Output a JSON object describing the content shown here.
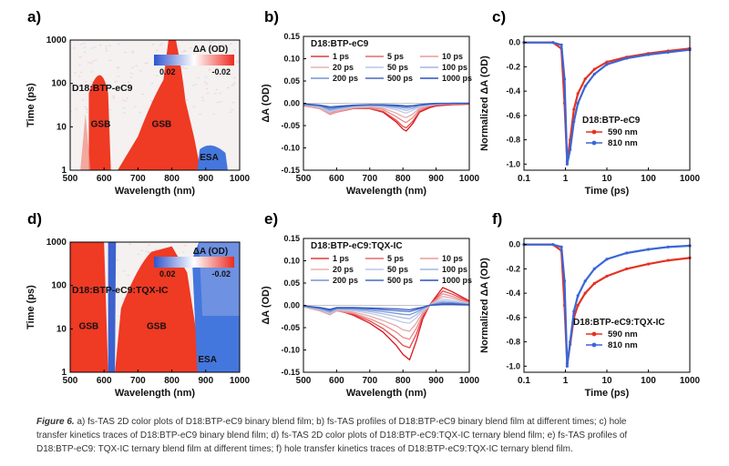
{
  "colors": {
    "red": "#e53222",
    "blue": "#3a66d6",
    "bg_red": "#ef3a24",
    "bg_blue": "#4477dd",
    "legend_red": "#e8463a",
    "legend_blue": "#3d6fe0",
    "text": "#111111"
  },
  "chart_data": [
    {
      "panel": "a)",
      "type": "heatmap",
      "sample": "D18:BTP-eC9",
      "xlabel": "Wavelength (nm)",
      "ylabel": "Time (ps)",
      "x_range": [
        500,
        1000
      ],
      "x_ticks": [
        "500",
        "600",
        "700",
        "800",
        "900",
        "1000"
      ],
      "y_scale": "log",
      "y_range": [
        1,
        1000
      ],
      "y_ticks": [
        "1",
        "10",
        "100",
        "1000"
      ],
      "colorbar": {
        "title": "ΔA (OD)",
        "min_label": "0.02",
        "max_label": "-0.02"
      },
      "annotations": [
        {
          "text": "GSB",
          "wavelength": 590,
          "time": 10
        },
        {
          "text": "GSB",
          "wavelength": 770,
          "time": 10
        },
        {
          "text": "ESA",
          "wavelength": 910,
          "time": 1.7
        }
      ]
    },
    {
      "panel": "b)",
      "type": "line",
      "sample": "D18:BTP-eC9",
      "xlabel": "Wavelength (nm)",
      "ylabel": "ΔA (OD)",
      "x_range": [
        500,
        1000
      ],
      "y_range": [
        -0.15,
        0.15
      ],
      "x_ticks": [
        "500",
        "600",
        "700",
        "800",
        "900",
        "1000"
      ],
      "y_ticks": [
        "0.15",
        "0.10",
        "0.05",
        "0.00",
        "-0.05",
        "-0.10",
        "-0.15"
      ],
      "legend": [
        "1 ps",
        "5 ps",
        "10 ps",
        "20 ps",
        "50 ps",
        "100 ps",
        "200 ps",
        "500 ps",
        "1000 ps"
      ],
      "x": [
        500,
        550,
        580,
        600,
        650,
        700,
        740,
        780,
        800,
        810,
        830,
        850,
        880,
        900,
        950,
        1000
      ],
      "series": [
        {
          "name": "1 ps",
          "values": [
            -0.005,
            -0.01,
            -0.02,
            -0.018,
            -0.01,
            -0.012,
            -0.02,
            -0.042,
            -0.058,
            -0.062,
            -0.045,
            -0.02,
            -0.01,
            -0.006,
            -0.003,
            -0.002
          ]
        },
        {
          "name": "5 ps",
          "values": [
            -0.005,
            -0.012,
            -0.024,
            -0.02,
            -0.012,
            -0.012,
            -0.018,
            -0.038,
            -0.052,
            -0.055,
            -0.04,
            -0.018,
            -0.008,
            -0.004,
            -0.002,
            -0.001
          ]
        },
        {
          "name": "10 ps",
          "values": [
            -0.004,
            -0.012,
            -0.025,
            -0.02,
            -0.011,
            -0.01,
            -0.014,
            -0.03,
            -0.04,
            -0.043,
            -0.032,
            -0.014,
            -0.006,
            -0.003,
            -0.001,
            0.0
          ]
        },
        {
          "name": "20 ps",
          "values": [
            -0.004,
            -0.011,
            -0.023,
            -0.018,
            -0.01,
            -0.008,
            -0.011,
            -0.022,
            -0.03,
            -0.032,
            -0.024,
            -0.011,
            -0.005,
            -0.002,
            -0.001,
            0.0
          ]
        },
        {
          "name": "50 ps",
          "values": [
            -0.003,
            -0.009,
            -0.02,
            -0.015,
            -0.008,
            -0.006,
            -0.008,
            -0.015,
            -0.02,
            -0.022,
            -0.016,
            -0.008,
            -0.004,
            -0.002,
            0.0,
            0.0
          ]
        },
        {
          "name": "100 ps",
          "values": [
            -0.003,
            -0.008,
            -0.017,
            -0.013,
            -0.007,
            -0.005,
            -0.006,
            -0.011,
            -0.014,
            -0.016,
            -0.012,
            -0.006,
            -0.003,
            -0.001,
            0.0,
            0.0
          ]
        },
        {
          "name": "200 ps",
          "values": [
            -0.002,
            -0.006,
            -0.014,
            -0.011,
            -0.006,
            -0.004,
            -0.005,
            -0.008,
            -0.01,
            -0.011,
            -0.009,
            -0.005,
            -0.002,
            -0.001,
            0.0,
            0.0
          ]
        },
        {
          "name": "500 ps",
          "values": [
            -0.002,
            -0.005,
            -0.011,
            -0.009,
            -0.005,
            -0.003,
            -0.004,
            -0.006,
            -0.007,
            -0.008,
            -0.006,
            -0.004,
            -0.002,
            -0.001,
            0.0,
            0.0
          ]
        },
        {
          "name": "1000 ps",
          "values": [
            -0.001,
            -0.004,
            -0.008,
            -0.007,
            -0.004,
            -0.003,
            -0.003,
            -0.004,
            -0.005,
            -0.006,
            -0.005,
            -0.003,
            -0.001,
            0.0,
            0.0,
            0.0
          ]
        }
      ]
    },
    {
      "panel": "c)",
      "type": "line",
      "sample": "D18:BTP-eC9",
      "xlabel": "Time (ps)",
      "ylabel": "Normalized ΔA (OD)",
      "x_scale": "log",
      "x_range": [
        0.1,
        1000
      ],
      "y_range": [
        -1.05,
        0.05
      ],
      "x_ticks": [
        "0.1",
        "1",
        "10",
        "100",
        "1000"
      ],
      "y_ticks": [
        "0.0",
        "-0.2",
        "-0.4",
        "-0.6",
        "-0.8",
        "-1.0"
      ],
      "series": [
        {
          "name": "590 nm",
          "x": [
            0.1,
            0.5,
            0.8,
            0.95,
            1.1,
            1.3,
            1.6,
            2,
            3,
            5,
            10,
            30,
            100,
            300,
            1000
          ],
          "values": [
            0.0,
            0.0,
            -0.05,
            -0.5,
            -0.98,
            -0.8,
            -0.55,
            -0.42,
            -0.3,
            -0.22,
            -0.16,
            -0.12,
            -0.09,
            -0.07,
            -0.05
          ]
        },
        {
          "name": "810 nm",
          "x": [
            0.1,
            0.5,
            0.8,
            0.95,
            1.1,
            1.3,
            1.6,
            2,
            3,
            5,
            10,
            30,
            100,
            300,
            1000
          ],
          "values": [
            0.0,
            0.0,
            -0.02,
            -0.3,
            -1.0,
            -0.88,
            -0.65,
            -0.5,
            -0.36,
            -0.26,
            -0.18,
            -0.13,
            -0.1,
            -0.08,
            -0.06
          ]
        }
      ]
    },
    {
      "panel": "d)",
      "type": "heatmap",
      "sample": "D18:BTP-eC9:TQX-IC",
      "xlabel": "Wavelength (nm)",
      "ylabel": "Time (ps)",
      "x_range": [
        500,
        1000
      ],
      "x_ticks": [
        "500",
        "600",
        "700",
        "800",
        "900",
        "1000"
      ],
      "y_scale": "log",
      "y_range": [
        1,
        1000
      ],
      "y_ticks": [
        "1",
        "10",
        "100",
        "1000"
      ],
      "colorbar": {
        "title": "ΔA (OD)",
        "min_label": "0.02",
        "max_label": "-0.02"
      },
      "annotations": [
        {
          "text": "GSB",
          "wavelength": 555,
          "time": 10
        },
        {
          "text": "GSB",
          "wavelength": 755,
          "time": 10
        },
        {
          "text": "ESA",
          "wavelength": 905,
          "time": 1.7
        }
      ]
    },
    {
      "panel": "e)",
      "type": "line",
      "sample": "D18:BTP-eC9:TQX-IC",
      "xlabel": "Wavelength (nm)",
      "ylabel": "ΔA (OD)",
      "x_range": [
        500,
        1000
      ],
      "y_range": [
        -0.15,
        0.15
      ],
      "x_ticks": [
        "500",
        "600",
        "700",
        "800",
        "900",
        "1000"
      ],
      "y_ticks": [
        "0.15",
        "0.10",
        "0.05",
        "0.00",
        "-0.05",
        "-0.10",
        "-0.15"
      ],
      "legend": [
        "1 ps",
        "5 ps",
        "10 ps",
        "20 ps",
        "50 ps",
        "100 ps",
        "200 ps",
        "500 ps",
        "1000 ps"
      ],
      "x": [
        500,
        550,
        580,
        600,
        650,
        700,
        740,
        780,
        800,
        820,
        840,
        860,
        880,
        900,
        920,
        950,
        1000
      ],
      "series": [
        {
          "name": "1 ps",
          "values": [
            -0.002,
            -0.01,
            -0.018,
            -0.01,
            -0.022,
            -0.04,
            -0.06,
            -0.09,
            -0.11,
            -0.122,
            -0.08,
            -0.03,
            0.0,
            0.02,
            0.04,
            0.03,
            0.01
          ]
        },
        {
          "name": "5 ps",
          "values": [
            -0.003,
            -0.012,
            -0.02,
            -0.012,
            -0.02,
            -0.035,
            -0.052,
            -0.075,
            -0.09,
            -0.095,
            -0.065,
            -0.025,
            0.0,
            0.016,
            0.032,
            0.025,
            0.008
          ]
        },
        {
          "name": "10 ps",
          "values": [
            -0.003,
            -0.012,
            -0.021,
            -0.012,
            -0.018,
            -0.03,
            -0.043,
            -0.06,
            -0.072,
            -0.076,
            -0.052,
            -0.02,
            0.0,
            0.013,
            0.026,
            0.02,
            0.006
          ]
        },
        {
          "name": "20 ps",
          "values": [
            -0.003,
            -0.011,
            -0.02,
            -0.011,
            -0.015,
            -0.024,
            -0.034,
            -0.046,
            -0.055,
            -0.058,
            -0.04,
            -0.016,
            0.0,
            0.01,
            0.02,
            0.016,
            0.005
          ]
        },
        {
          "name": "50 ps",
          "values": [
            -0.002,
            -0.01,
            -0.018,
            -0.01,
            -0.012,
            -0.018,
            -0.025,
            -0.033,
            -0.038,
            -0.04,
            -0.028,
            -0.012,
            0.0,
            0.007,
            0.014,
            0.011,
            0.004
          ]
        },
        {
          "name": "100 ps",
          "values": [
            -0.002,
            -0.009,
            -0.016,
            -0.009,
            -0.01,
            -0.014,
            -0.019,
            -0.025,
            -0.028,
            -0.03,
            -0.021,
            -0.009,
            0.0,
            0.005,
            0.01,
            0.008,
            0.003
          ]
        },
        {
          "name": "200 ps",
          "values": [
            -0.002,
            -0.008,
            -0.014,
            -0.008,
            -0.008,
            -0.011,
            -0.014,
            -0.018,
            -0.02,
            -0.021,
            -0.015,
            -0.007,
            0.0,
            0.004,
            0.007,
            0.006,
            0.002
          ]
        },
        {
          "name": "500 ps",
          "values": [
            -0.001,
            -0.006,
            -0.011,
            -0.006,
            -0.006,
            -0.008,
            -0.01,
            -0.012,
            -0.013,
            -0.014,
            -0.01,
            -0.005,
            0.0,
            0.002,
            0.004,
            0.004,
            0.001
          ]
        },
        {
          "name": "1000 ps",
          "values": [
            -0.001,
            -0.005,
            -0.009,
            -0.005,
            -0.005,
            -0.006,
            -0.007,
            -0.008,
            -0.009,
            -0.01,
            -0.007,
            -0.004,
            0.0,
            0.001,
            0.002,
            0.002,
            0.001
          ]
        }
      ]
    },
    {
      "panel": "f)",
      "type": "line",
      "sample": "D18:BTP-eC9:TQX-IC",
      "xlabel": "Time (ps)",
      "ylabel": "Normalized ΔA (OD)",
      "x_scale": "log",
      "x_range": [
        0.1,
        1000
      ],
      "y_range": [
        -1.05,
        0.05
      ],
      "x_ticks": [
        "0.1",
        "1",
        "10",
        "100",
        "1000"
      ],
      "y_ticks": [
        "0.0",
        "-0.2",
        "-0.4",
        "-0.6",
        "-0.8",
        "-1.0"
      ],
      "series": [
        {
          "name": "590 nm",
          "x": [
            0.1,
            0.5,
            0.8,
            0.95,
            1.1,
            1.3,
            1.6,
            2,
            3,
            5,
            10,
            30,
            100,
            300,
            1000
          ],
          "values": [
            0.0,
            0.0,
            -0.05,
            -0.5,
            -0.98,
            -0.82,
            -0.6,
            -0.5,
            -0.4,
            -0.32,
            -0.26,
            -0.2,
            -0.16,
            -0.13,
            -0.11
          ]
        },
        {
          "name": "810 nm",
          "x": [
            0.1,
            0.5,
            0.8,
            0.95,
            1.1,
            1.3,
            1.6,
            2,
            3,
            5,
            10,
            30,
            100,
            300,
            1000
          ],
          "values": [
            0.0,
            0.0,
            -0.02,
            -0.3,
            -1.0,
            -0.8,
            -0.55,
            -0.42,
            -0.3,
            -0.2,
            -0.12,
            -0.07,
            -0.04,
            -0.02,
            -0.01
          ]
        }
      ]
    }
  ],
  "caption": {
    "label": "Figure 6.",
    "lines": [
      " a) fs-TAS 2D color plots of D18:BTP-eC9 binary blend film; b) fs-TAS profiles of D18:BTP-eC9 binary blend film at different times; c) hole",
      "transfer kinetics traces of D18:BTP-eC9 binary blend film; d) fs-TAS 2D color plots of D18:BTP-eC9:TQX-IC ternary blend film; e) fs-TAS profiles of",
      "D18:BTP-eC9: TQX-IC ternary blend film at different times; f) hole transfer kinetics traces of D18:BTP-eC9:TQX-IC ternary blend film."
    ]
  }
}
